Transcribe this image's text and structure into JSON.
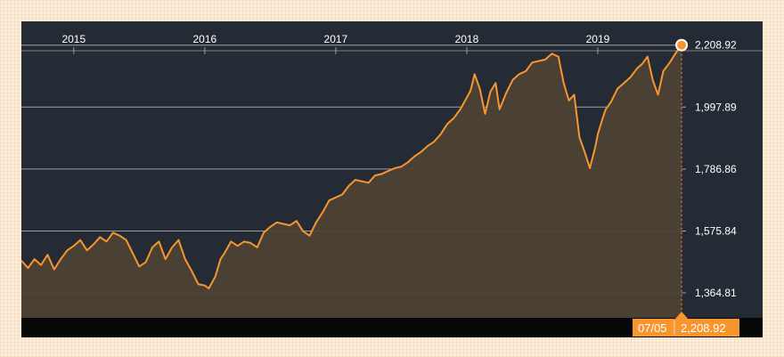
{
  "chart_data": {
    "type": "area",
    "x_tick_labels": [
      "2015",
      "2016",
      "2017",
      "2018",
      "2019"
    ],
    "y_tick_labels": [
      "2,208.92",
      "1,997.89",
      "1,786.86",
      "1,575.84",
      "1,364.81"
    ],
    "y_ticks": [
      2208.92,
      1997.89,
      1786.86,
      1575.84,
      1364.81
    ],
    "ylim": [
      1280,
      2290
    ],
    "xlim": [
      2014.6,
      2019.66
    ],
    "grid": true,
    "series": [
      {
        "x": [
          2014.6,
          2014.65,
          2014.7,
          2014.75,
          2014.8,
          2014.85,
          2014.9,
          2014.95,
          2015.0,
          2015.05,
          2015.1,
          2015.15,
          2015.2,
          2015.25,
          2015.3,
          2015.35,
          2015.4,
          2015.45,
          2015.5,
          2015.55,
          2015.6,
          2015.65,
          2015.7,
          2015.75,
          2015.8,
          2015.85,
          2015.9,
          2015.95,
          2016.0,
          2016.03,
          2016.08,
          2016.12,
          2016.15,
          2016.2,
          2016.25,
          2016.3,
          2016.35,
          2016.4,
          2016.45,
          2016.5,
          2016.55,
          2016.6,
          2016.65,
          2016.7,
          2016.75,
          2016.8,
          2016.85,
          2016.9,
          2016.95,
          2017.0,
          2017.05,
          2017.1,
          2017.15,
          2017.2,
          2017.25,
          2017.3,
          2017.35,
          2017.4,
          2017.45,
          2017.5,
          2017.55,
          2017.6,
          2017.65,
          2017.7,
          2017.75,
          2017.8,
          2017.85,
          2017.9,
          2017.95,
          2018.0,
          2018.03,
          2018.06,
          2018.1,
          2018.14,
          2018.18,
          2018.22,
          2018.25,
          2018.3,
          2018.35,
          2018.4,
          2018.45,
          2018.5,
          2018.55,
          2018.6,
          2018.65,
          2018.7,
          2018.74,
          2018.78,
          2018.82,
          2018.86,
          2018.9,
          2018.94,
          2018.98,
          2019.0,
          2019.03,
          2019.06,
          2019.1,
          2019.15,
          2019.2,
          2019.25,
          2019.3,
          2019.34,
          2019.38,
          2019.42,
          2019.46,
          2019.5,
          2019.55,
          2019.6,
          2019.64
        ],
        "values": [
          1475,
          1450,
          1480,
          1460,
          1495,
          1445,
          1480,
          1510,
          1525,
          1545,
          1510,
          1530,
          1555,
          1540,
          1570,
          1560,
          1545,
          1500,
          1455,
          1470,
          1520,
          1540,
          1480,
          1520,
          1545,
          1480,
          1440,
          1395,
          1390,
          1380,
          1420,
          1480,
          1500,
          1540,
          1525,
          1540,
          1535,
          1520,
          1570,
          1590,
          1605,
          1600,
          1595,
          1610,
          1575,
          1560,
          1605,
          1640,
          1680,
          1690,
          1700,
          1730,
          1750,
          1745,
          1740,
          1765,
          1770,
          1780,
          1790,
          1795,
          1810,
          1830,
          1845,
          1865,
          1880,
          1905,
          1940,
          1960,
          1990,
          2030,
          2055,
          2110,
          2060,
          1975,
          2050,
          2080,
          1990,
          2045,
          2090,
          2110,
          2120,
          2150,
          2155,
          2160,
          2180,
          2170,
          2080,
          2020,
          2040,
          1895,
          1845,
          1790,
          1860,
          1905,
          1950,
          1990,
          2015,
          2060,
          2080,
          2100,
          2130,
          2145,
          2170,
          2090,
          2040,
          2120,
          2150,
          2185,
          2209
        ]
      }
    ],
    "last_point": {
      "date": "07/05",
      "value_label": "2,208.92",
      "value": 2208.92
    },
    "colors": {
      "plot_background": "#242b35",
      "line": "#f7962e",
      "area_fill": "#4e4135",
      "grid": "#c8c8c8",
      "footer_background": "#060606",
      "marker_fill": "#f7962e",
      "marker_stroke": "#ffffff",
      "badge": "#f7962e"
    }
  }
}
